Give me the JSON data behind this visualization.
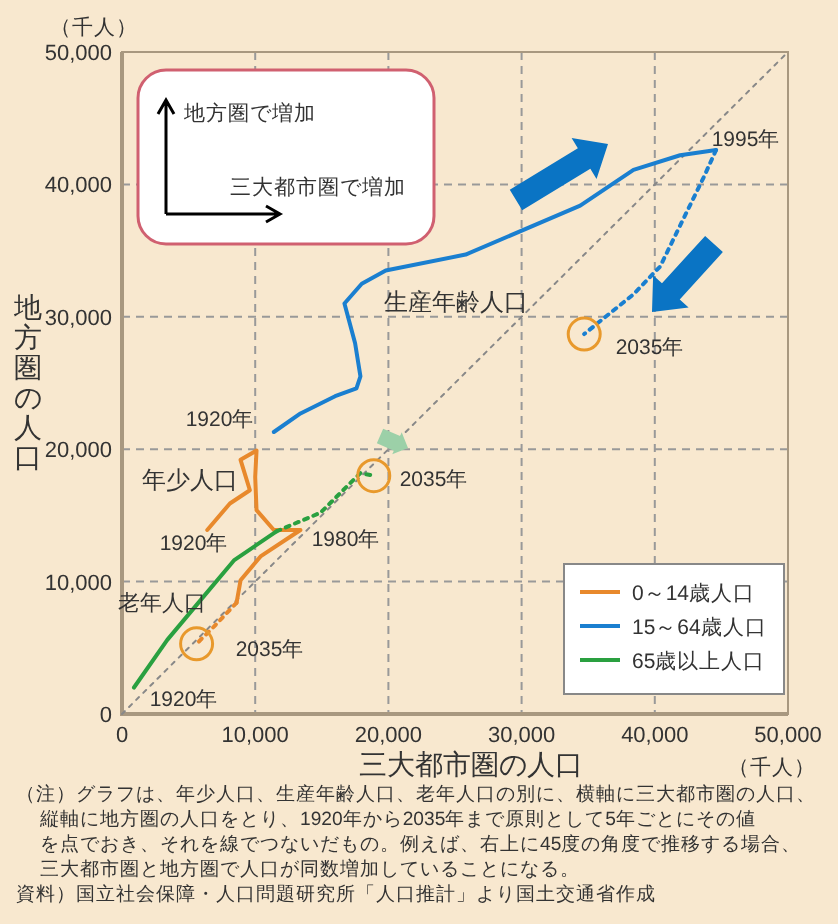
{
  "chart_data": {
    "type": "line",
    "xlabel": "三大都市圏の人口",
    "ylabel": "地方圏の人口",
    "xlim": [
      0,
      50000
    ],
    "ylim": [
      0,
      50000
    ],
    "xticks": [
      0,
      {
        "value": 10000,
        "label": "10,000"
      },
      {
        "value": 20000,
        "label": "20,000"
      },
      {
        "value": 30000,
        "label": "30,000"
      },
      {
        "value": 40000,
        "label": "40,000"
      },
      {
        "value": 50000,
        "label": "50,000"
      }
    ],
    "yticks": [
      0,
      {
        "value": 10000,
        "label": "10,000"
      },
      {
        "value": 20000,
        "label": "20,000"
      },
      {
        "value": 30000,
        "label": "30,000"
      },
      {
        "value": 40000,
        "label": "40,000"
      },
      {
        "value": 50000,
        "label": "50,000"
      }
    ],
    "grid": true,
    "legend": "bottom right",
    "marker": "none",
    "series": [
      {
        "color": "#888888",
        "line_style": "dotted",
        "x": [
          0,
          50000
        ],
        "values": [
          0,
          50000
        ]
      },
      {
        "name": "0～14歳人口",
        "color": "#e8892c",
        "line_style": "solid",
        "x": [
          6400,
          8100,
          9600,
          8900,
          10100,
          10000,
          10100,
          11400,
          13400,
          10400,
          8900,
          8600
        ],
        "values": [
          13900,
          15900,
          16900,
          19200,
          19900,
          17900,
          15400,
          13900,
          13900,
          11900,
          10100,
          8400
        ]
      },
      {
        "color": "#e8892c",
        "line_style": "dotted",
        "x": [
          8600,
          6900,
          5600
        ],
        "values": [
          8400,
          6600,
          5300
        ]
      },
      {
        "name": "15～64歳人口",
        "color": "#1a7fd0",
        "line_style": "solid",
        "x": [
          11400,
          13400,
          16000,
          17600,
          17900,
          17500,
          16700,
          18000,
          19800,
          25800,
          34400,
          38400,
          41900,
          44600
        ],
        "values": [
          21300,
          22700,
          24000,
          24600,
          25500,
          28000,
          31000,
          32500,
          33500,
          34700,
          38400,
          41100,
          42200,
          42600
        ]
      },
      {
        "color": "#1a7fd0",
        "line_style": "dotted",
        "x": [
          44600,
          43700,
          40400,
          38400,
          34700
        ],
        "values": [
          42600,
          40600,
          33800,
          31700,
          28700
        ]
      },
      {
        "name": "65歳以上人口",
        "color": "#2aa040",
        "line_style": "solid",
        "x": [
          900,
          3400,
          5900,
          8400,
          11600
        ],
        "values": [
          2000,
          5600,
          8600,
          11600,
          13800
        ]
      },
      {
        "color": "#2aa040",
        "line_style": "dotted",
        "x": [
          11600,
          14900,
          17900,
          18900
        ],
        "values": [
          13800,
          15200,
          18200,
          18000
        ]
      }
    ],
    "annotations": [
      "1920年",
      "1995年",
      "2035年",
      "2035年",
      "1920年",
      "1980年",
      "2035年",
      "1920年",
      "生産年齢人口",
      "年少人口",
      "老年人口",
      "地方圏で増加",
      "三大都市圏で増加",
      "（千人）",
      "（千人）",
      "（注）グラフは、年少人口、生産年齢人口、老年人口の別に、横軸に三大都市圏の人口、",
      "縦軸に地方圏の人口をとり、1920年から2035年まで原則として5年ごとにその値",
      "を点でおき、それを線でつないだもの。例えば、右上に45度の角度で推移する場合、",
      "三大都市圏と地方圏で人口が同数増加していることになる。",
      "資料）国立社会保障・人口問題研究所「人口推計」より国土交通省作成"
    ]
  }
}
